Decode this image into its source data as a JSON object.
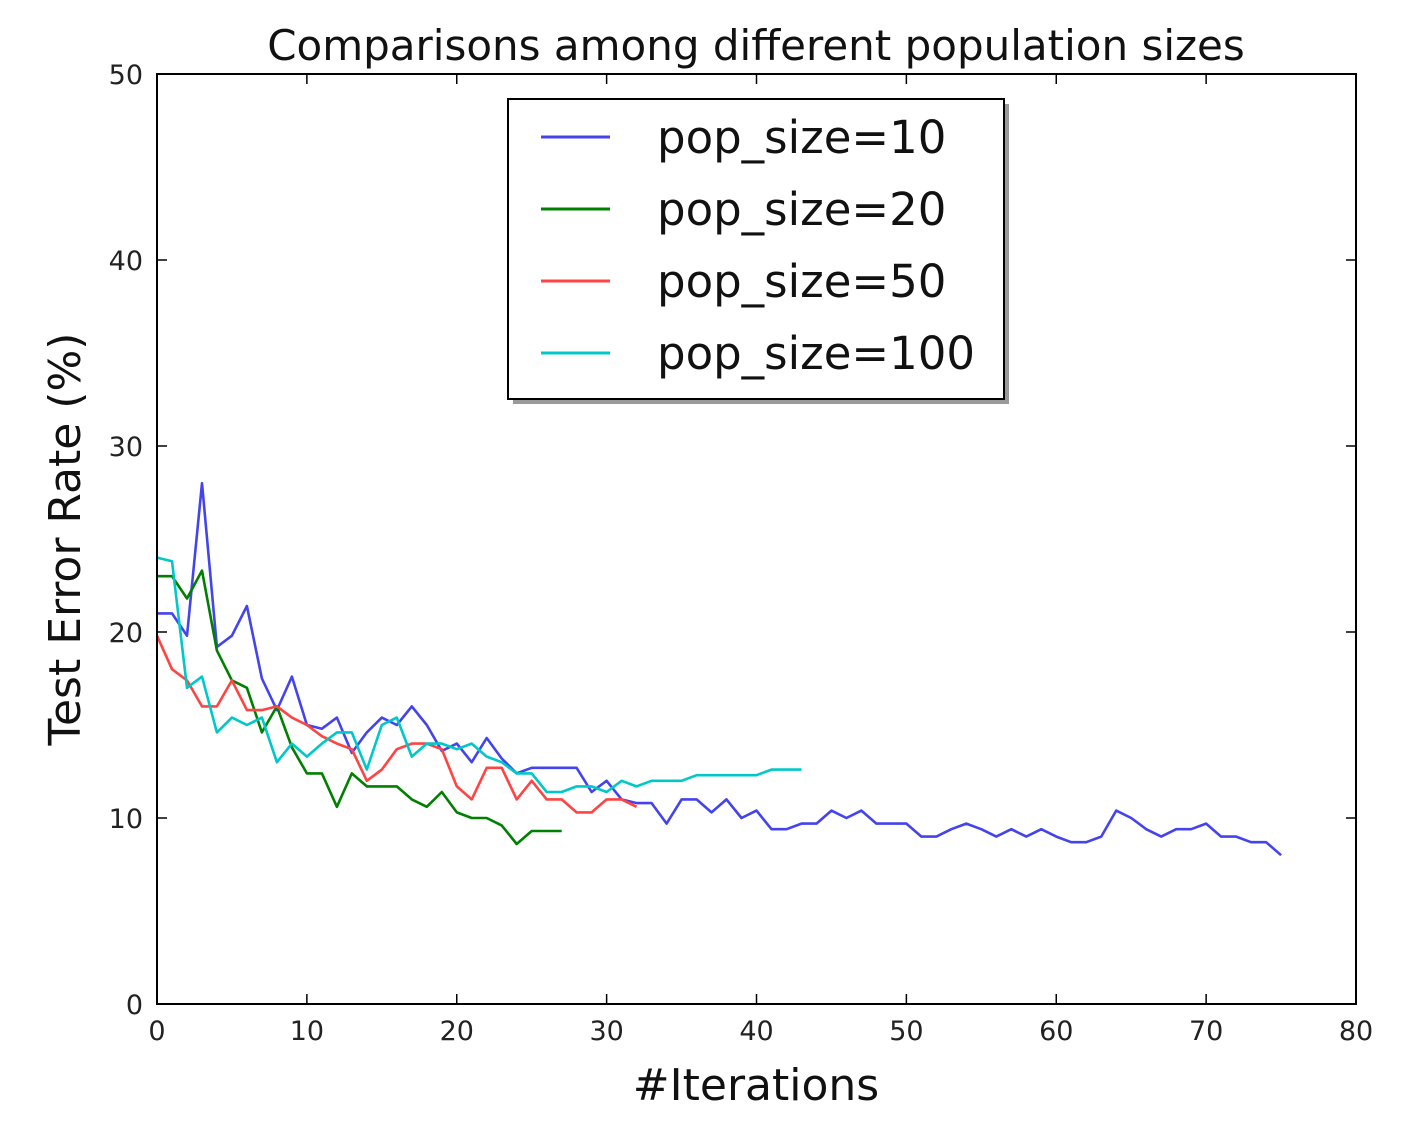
{
  "chart_data": {
    "type": "line",
    "title": "Comparisons among different population sizes",
    "xlabel": "#Iterations",
    "ylabel": "Test Error Rate (%)",
    "xlim": [
      0,
      80
    ],
    "ylim": [
      0,
      50
    ],
    "xticks": [
      0,
      10,
      20,
      30,
      40,
      50,
      60,
      70,
      80
    ],
    "yticks": [
      0,
      10,
      20,
      30,
      40,
      50
    ],
    "grid": false,
    "legend_position": "top-center",
    "series": [
      {
        "name": "pop_size=10",
        "color": "#4444ee",
        "x": [
          0,
          1,
          2,
          3,
          4,
          5,
          6,
          7,
          8,
          9,
          10,
          11,
          12,
          13,
          14,
          15,
          16,
          17,
          18,
          19,
          20,
          21,
          22,
          23,
          24,
          25,
          26,
          27,
          28,
          29,
          30,
          31,
          32,
          33,
          34,
          35,
          36,
          37,
          38,
          39,
          40,
          41,
          42,
          43,
          44,
          45,
          46,
          47,
          48,
          49,
          50,
          51,
          52,
          53,
          54,
          55,
          56,
          57,
          58,
          59,
          60,
          61,
          62,
          63,
          64,
          65,
          66,
          67,
          68,
          69,
          70,
          71,
          72,
          73,
          74,
          75
        ],
        "values": [
          21.0,
          21.0,
          19.8,
          28.0,
          19.2,
          19.8,
          21.4,
          17.5,
          15.8,
          17.6,
          15.0,
          14.8,
          15.4,
          13.5,
          14.6,
          15.4,
          15.0,
          16.0,
          15.0,
          13.6,
          14.0,
          13.0,
          14.3,
          13.2,
          12.4,
          12.7,
          12.7,
          12.7,
          12.7,
          11.4,
          12.0,
          11.0,
          10.8,
          10.8,
          9.7,
          11.0,
          11.0,
          10.3,
          11.0,
          10.0,
          10.4,
          9.4,
          9.4,
          9.7,
          9.7,
          10.4,
          10.0,
          10.4,
          9.7,
          9.7,
          9.7,
          9.0,
          9.0,
          9.4,
          9.7,
          9.4,
          9.0,
          9.4,
          9.0,
          9.4,
          9.0,
          8.7,
          8.7,
          9.0,
          10.4,
          10.0,
          9.4,
          9.0,
          9.4,
          9.4,
          9.7,
          9.0,
          9.0,
          8.7,
          8.7,
          8.0
        ]
      },
      {
        "name": "pop_size=20",
        "color": "#008000",
        "x": [
          0,
          1,
          2,
          3,
          4,
          5,
          6,
          7,
          8,
          9,
          10,
          11,
          12,
          13,
          14,
          15,
          16,
          17,
          18,
          19,
          20,
          21,
          22,
          23,
          24,
          25,
          26,
          27
        ],
        "values": [
          23.0,
          23.0,
          21.8,
          23.3,
          19.0,
          17.4,
          17.0,
          14.6,
          16.0,
          13.8,
          12.4,
          12.4,
          10.6,
          12.4,
          11.7,
          11.7,
          11.7,
          11.0,
          10.6,
          11.4,
          10.3,
          10.0,
          10.0,
          9.6,
          8.6,
          9.3,
          9.3,
          9.3
        ]
      },
      {
        "name": "pop_size=50",
        "color": "#ff4444",
        "x": [
          0,
          1,
          2,
          3,
          4,
          5,
          6,
          7,
          8,
          9,
          10,
          11,
          12,
          13,
          14,
          15,
          16,
          17,
          18,
          19,
          20,
          21,
          22,
          23,
          24,
          25,
          26,
          27,
          28,
          29,
          30,
          31,
          32
        ],
        "values": [
          19.8,
          18.0,
          17.4,
          16.0,
          16.0,
          17.4,
          15.8,
          15.8,
          16.0,
          15.4,
          15.0,
          14.4,
          14.0,
          13.7,
          12.0,
          12.6,
          13.7,
          14.0,
          14.0,
          13.7,
          11.7,
          11.0,
          12.7,
          12.7,
          11.0,
          12.0,
          11.0,
          11.0,
          10.3,
          10.3,
          11.0,
          11.0,
          10.6
        ]
      },
      {
        "name": "pop_size=100",
        "color": "#00c8c8",
        "x": [
          0,
          1,
          2,
          3,
          4,
          5,
          6,
          7,
          8,
          9,
          10,
          11,
          12,
          13,
          14,
          15,
          16,
          17,
          18,
          19,
          20,
          21,
          22,
          23,
          24,
          25,
          26,
          27,
          28,
          29,
          30,
          31,
          32,
          33,
          34,
          35,
          36,
          37,
          38,
          39,
          40,
          41,
          42,
          43
        ],
        "values": [
          24.0,
          23.8,
          17.0,
          17.6,
          14.6,
          15.4,
          15.0,
          15.4,
          13.0,
          14.0,
          13.3,
          14.0,
          14.6,
          14.6,
          12.6,
          15.0,
          15.4,
          13.3,
          14.0,
          14.0,
          13.7,
          14.0,
          13.3,
          13.0,
          12.4,
          12.4,
          11.4,
          11.4,
          11.7,
          11.7,
          11.4,
          12.0,
          11.7,
          12.0,
          12.0,
          12.0,
          12.3,
          12.3,
          12.3,
          12.3,
          12.3,
          12.6,
          12.6,
          12.6
        ]
      }
    ]
  }
}
